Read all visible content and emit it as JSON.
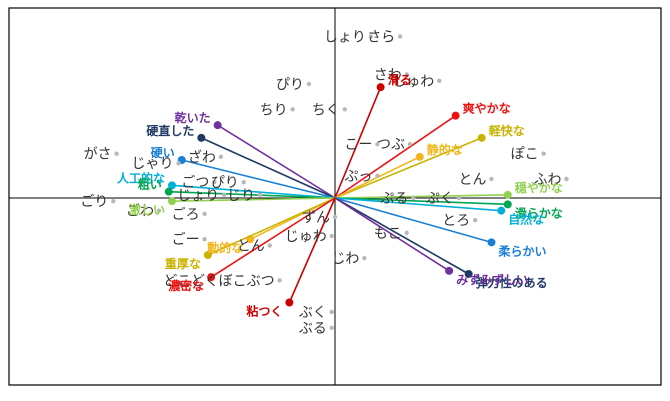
{
  "chart_data": {
    "type": "scatter",
    "subtype": "biplot",
    "title": "",
    "xlabel": "",
    "ylabel": "",
    "xlim": [
      -10,
      10
    ],
    "ylim": [
      -6,
      6
    ],
    "grid": false,
    "axes_through_origin": true,
    "onomatopoeia": [
      {
        "label": "しょり",
        "x": 1.1,
        "y": 5.1
      },
      {
        "label": "さら",
        "x": 2.0,
        "y": 5.1
      },
      {
        "label": "さわ",
        "x": 2.2,
        "y": 3.9
      },
      {
        "label": "しゅわ",
        "x": 3.2,
        "y": 3.7
      },
      {
        "label": "ぴり",
        "x": -0.8,
        "y": 3.6
      },
      {
        "label": "ちり",
        "x": -1.3,
        "y": 2.8
      },
      {
        "label": "ちく",
        "x": 0.3,
        "y": 2.8
      },
      {
        "label": "こー",
        "x": 1.3,
        "y": 1.7
      },
      {
        "label": "つぶ",
        "x": 2.3,
        "y": 1.7
      },
      {
        "label": "ぽこ",
        "x": 6.4,
        "y": 1.4
      },
      {
        "label": "がさ",
        "x": -6.7,
        "y": 1.4
      },
      {
        "label": "じゃり",
        "x": -4.8,
        "y": 1.1
      },
      {
        "label": "ざわ",
        "x": -3.5,
        "y": 1.3
      },
      {
        "label": "ぷっ",
        "x": 1.3,
        "y": 0.7
      },
      {
        "label": "とん",
        "x": 4.8,
        "y": 0.6
      },
      {
        "label": "ふわ",
        "x": 7.1,
        "y": 0.6
      },
      {
        "label": "ごつ",
        "x": -3.7,
        "y": 0.5
      },
      {
        "label": "ぴり",
        "x": -2.8,
        "y": 0.5
      },
      {
        "label": "じょり",
        "x": -3.4,
        "y": 0.1
      },
      {
        "label": "じり",
        "x": -2.3,
        "y": 0.1
      },
      {
        "label": "ごり",
        "x": -6.8,
        "y": -0.1
      },
      {
        "label": "ぷる",
        "x": 2.4,
        "y": 0.0
      },
      {
        "label": "ぷく",
        "x": 3.8,
        "y": 0.0
      },
      {
        "label": "ごわ",
        "x": -5.4,
        "y": -0.4
      },
      {
        "label": "ごろ",
        "x": -4.0,
        "y": -0.5
      },
      {
        "label": "ずん",
        "x": 0.0,
        "y": -0.6
      },
      {
        "label": "とろ",
        "x": 4.3,
        "y": -0.7
      },
      {
        "label": "もこ",
        "x": 2.2,
        "y": -1.1
      },
      {
        "label": "ごー",
        "x": -4.0,
        "y": -1.3
      },
      {
        "label": "じゅわ",
        "x": -0.1,
        "y": -1.2
      },
      {
        "label": "とん",
        "x": -2.0,
        "y": -1.5
      },
      {
        "label": "じわ",
        "x": 0.9,
        "y": -1.9
      },
      {
        "label": "どこどくぼこぶつ",
        "x": -1.7,
        "y": -2.6
      },
      {
        "label": "ぶく",
        "x": -0.1,
        "y": -3.6
      },
      {
        "label": "ぶる",
        "x": -0.1,
        "y": -4.1
      }
    ],
    "adjective_vectors": [
      {
        "label": "滑る",
        "x": 1.4,
        "y": 3.5,
        "color": "#cc0000"
      },
      {
        "label": "爽やかな",
        "x": 3.7,
        "y": 2.6,
        "color": "#ee1111"
      },
      {
        "label": "軽快な",
        "x": 4.5,
        "y": 1.9,
        "color": "#c8b400"
      },
      {
        "label": "静的な",
        "x": 2.6,
        "y": 1.3,
        "color": "#f2b61a"
      },
      {
        "label": "穏やかな",
        "x": 5.3,
        "y": 0.1,
        "color": "#92d050"
      },
      {
        "label": "滑らかな",
        "x": 5.3,
        "y": -0.2,
        "color": "#00a651"
      },
      {
        "label": "自然な",
        "x": 5.1,
        "y": -0.4,
        "color": "#00b0d8"
      },
      {
        "label": "柔らかい",
        "x": 4.8,
        "y": -1.4,
        "color": "#1a7fd6"
      },
      {
        "label": "弾力性のある",
        "x": 4.1,
        "y": -2.4,
        "color": "#1f3864"
      },
      {
        "label": "みずみずしい",
        "x": 3.5,
        "y": -2.3,
        "color": "#7030a0"
      },
      {
        "label": "乾いた",
        "x": -3.6,
        "y": 2.3,
        "color": "#7030a0"
      },
      {
        "label": "硬直した",
        "x": -4.1,
        "y": 1.9,
        "color": "#1f3864"
      },
      {
        "label": "硬い",
        "x": -4.7,
        "y": 1.2,
        "color": "#1a7fd6"
      },
      {
        "label": "人工的な",
        "x": -5.0,
        "y": 0.4,
        "color": "#00b0d8"
      },
      {
        "label": "粗い",
        "x": -5.1,
        "y": 0.2,
        "color": "#00a651"
      },
      {
        "label": "激しい",
        "x": -5.0,
        "y": -0.1,
        "color": "#92d050"
      },
      {
        "label": "動的な",
        "x": -2.6,
        "y": -1.3,
        "color": "#f2b61a"
      },
      {
        "label": "重厚な",
        "x": -3.9,
        "y": -1.8,
        "color": "#c8b400"
      },
      {
        "label": "濃密な",
        "x": -3.8,
        "y": -2.5,
        "color": "#ee1111"
      },
      {
        "label": "粘つく",
        "x": -1.4,
        "y": -3.3,
        "color": "#cc0000"
      }
    ]
  }
}
